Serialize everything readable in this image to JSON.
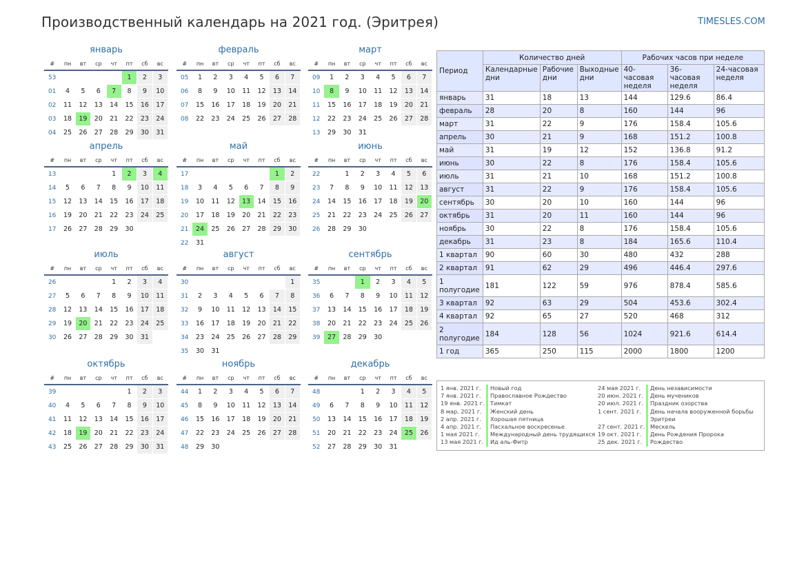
{
  "header": {
    "title": "Производственный календарь на 2021 год. (Эритрея)",
    "site": "TIMESLES.COM"
  },
  "weekday_headers": [
    "#",
    "пн",
    "вт",
    "ср",
    "чт",
    "пт",
    "сб",
    "вс"
  ],
  "months": [
    {
      "name": "январь",
      "weeks": [
        53,
        1,
        2,
        3,
        4
      ],
      "offset": 4,
      "days": 31,
      "holidays": [
        1,
        7,
        19
      ]
    },
    {
      "name": "февраль",
      "weeks": [
        5,
        6,
        7,
        8
      ],
      "offset": 0,
      "days": 28,
      "holidays": []
    },
    {
      "name": "март",
      "weeks": [
        9,
        10,
        11,
        12,
        13
      ],
      "offset": 0,
      "days": 31,
      "holidays": [
        8
      ]
    },
    {
      "name": "апрель",
      "weeks": [
        13,
        14,
        15,
        16,
        17
      ],
      "offset": 3,
      "days": 30,
      "holidays": [
        2,
        4
      ]
    },
    {
      "name": "май",
      "weeks": [
        17,
        18,
        19,
        20,
        21,
        22
      ],
      "offset": 5,
      "days": 31,
      "holidays": [
        1,
        13,
        24
      ]
    },
    {
      "name": "июнь",
      "weeks": [
        22,
        23,
        24,
        25,
        26
      ],
      "offset": 1,
      "days": 30,
      "holidays": [
        20
      ]
    },
    {
      "name": "июль",
      "weeks": [
        26,
        27,
        28,
        29,
        30
      ],
      "offset": 3,
      "days": 31,
      "holidays": [
        20
      ]
    },
    {
      "name": "август",
      "weeks": [
        30,
        31,
        32,
        33,
        34,
        35
      ],
      "offset": 6,
      "days": 31,
      "holidays": []
    },
    {
      "name": "сентябрь",
      "weeks": [
        35,
        36,
        37,
        38,
        39
      ],
      "offset": 2,
      "days": 30,
      "holidays": [
        1,
        27
      ]
    },
    {
      "name": "октябрь",
      "weeks": [
        39,
        40,
        41,
        42,
        43
      ],
      "offset": 4,
      "days": 31,
      "holidays": [
        19
      ]
    },
    {
      "name": "ноябрь",
      "weeks": [
        44,
        45,
        46,
        47,
        48
      ],
      "offset": 0,
      "days": 30,
      "holidays": []
    },
    {
      "name": "декабрь",
      "weeks": [
        48,
        49,
        50,
        51,
        52
      ],
      "offset": 2,
      "days": 31,
      "holidays": [
        25
      ]
    }
  ],
  "stats": {
    "period_header": "Период",
    "days_group": "Количество дней",
    "hours_group": "Рабочих часов при неделе",
    "col_calendar": "Календарные дни",
    "col_working": "Рабочие дни",
    "col_weekend": "Выходные дни",
    "col_40": "40-часовая неделя",
    "col_36": "36-часовая неделя",
    "col_24": "24-часовая неделя",
    "rows": [
      {
        "label": "январь",
        "values": [
          "31",
          "18",
          "13",
          "144",
          "129.6",
          "86.4"
        ]
      },
      {
        "label": "февраль",
        "values": [
          "28",
          "20",
          "8",
          "160",
          "144",
          "96"
        ]
      },
      {
        "label": "март",
        "values": [
          "31",
          "22",
          "9",
          "176",
          "158.4",
          "105.6"
        ]
      },
      {
        "label": "апрель",
        "values": [
          "30",
          "21",
          "9",
          "168",
          "151.2",
          "100.8"
        ]
      },
      {
        "label": "май",
        "values": [
          "31",
          "19",
          "12",
          "152",
          "136.8",
          "91.2"
        ]
      },
      {
        "label": "июнь",
        "values": [
          "30",
          "22",
          "8",
          "176",
          "158.4",
          "105.6"
        ]
      },
      {
        "label": "июль",
        "values": [
          "31",
          "21",
          "10",
          "168",
          "151.2",
          "100.8"
        ]
      },
      {
        "label": "август",
        "values": [
          "31",
          "22",
          "9",
          "176",
          "158.4",
          "105.6"
        ]
      },
      {
        "label": "сентябрь",
        "values": [
          "30",
          "20",
          "10",
          "160",
          "144",
          "96"
        ]
      },
      {
        "label": "октябрь",
        "values": [
          "31",
          "20",
          "11",
          "160",
          "144",
          "96"
        ]
      },
      {
        "label": "ноябрь",
        "values": [
          "30",
          "22",
          "8",
          "176",
          "158.4",
          "105.6"
        ]
      },
      {
        "label": "декабрь",
        "values": [
          "31",
          "23",
          "8",
          "184",
          "165.6",
          "110.4"
        ]
      },
      {
        "label": "1 квартал",
        "values": [
          "90",
          "60",
          "30",
          "480",
          "432",
          "288"
        ]
      },
      {
        "label": "2 квартал",
        "values": [
          "91",
          "62",
          "29",
          "496",
          "446.4",
          "297.6"
        ]
      },
      {
        "label": "1 полугодие",
        "values": [
          "181",
          "122",
          "59",
          "976",
          "878.4",
          "585.6"
        ]
      },
      {
        "label": "3 квартал",
        "values": [
          "92",
          "63",
          "29",
          "504",
          "453.6",
          "302.4"
        ]
      },
      {
        "label": "4 квартал",
        "values": [
          "92",
          "65",
          "27",
          "520",
          "468",
          "312"
        ]
      },
      {
        "label": "2 полугодие",
        "values": [
          "184",
          "128",
          "56",
          "1024",
          "921.6",
          "614.4"
        ]
      },
      {
        "label": "1 год",
        "values": [
          "365",
          "250",
          "115",
          "2000",
          "1800",
          "1200"
        ]
      }
    ]
  },
  "holidays": {
    "left": [
      {
        "date": "1 янв. 2021 г.",
        "name": "Новый год"
      },
      {
        "date": "7 янв. 2021 г.",
        "name": "Православное Рождество"
      },
      {
        "date": "19 янв. 2021 г.",
        "name": "Тимкат"
      },
      {
        "date": "8 мар. 2021 г.",
        "name": "Женский день"
      },
      {
        "date": "2 апр. 2021 г.",
        "name": "Хорошая пятница"
      },
      {
        "date": "4 апр. 2021 г.",
        "name": "Пасхальное воскресенье"
      },
      {
        "date": "1 мая 2021 г.",
        "name": "Международный день трудящихся"
      },
      {
        "date": "13 мая 2021 г.",
        "name": "Ид аль-Фитр"
      }
    ],
    "right": [
      {
        "date": "24 мая 2021 г.",
        "name": "День независимости"
      },
      {
        "date": "20 июн. 2021 г.",
        "name": "День мучеников"
      },
      {
        "date": "20 июл. 2021 г.",
        "name": "Праздник озорства"
      },
      {
        "date": "1 сент. 2021 г.",
        "name": "День начала вооруженной борьбы"
      },
      {
        "date": "",
        "name": "Эритреи"
      },
      {
        "date": "27 сент. 2021 г.",
        "name": "Мескель"
      },
      {
        "date": "19 окт. 2021 г.",
        "name": "День Рождения Пророка"
      },
      {
        "date": "25 дек. 2021 г.",
        "name": "Рождество"
      }
    ]
  }
}
